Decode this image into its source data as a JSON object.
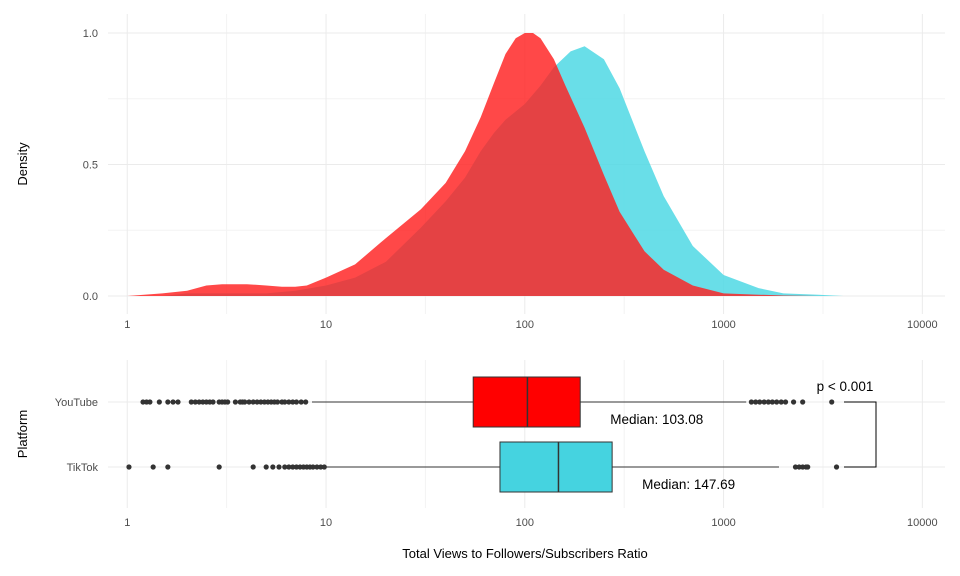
{
  "chart_data": [
    {
      "type": "area",
      "panel": "density",
      "ylabel": "Density",
      "x_scale": "log10",
      "xlim": [
        0.8,
        13000
      ],
      "ylim": [
        0,
        1.05
      ],
      "x_ticks": [
        1,
        10,
        100,
        1000,
        10000
      ],
      "x_tick_labels": [
        "1",
        "10",
        "100",
        "1000",
        "10000"
      ],
      "y_ticks": [
        0,
        0.5,
        1
      ],
      "y_tick_labels": [
        "0.0",
        "0.5",
        "1.0"
      ],
      "grid": true,
      "legend": "none",
      "series": [
        {
          "platform": "TikTok",
          "color": "#4fd8e4",
          "x": [
            1,
            1.5,
            2,
            3,
            4,
            5,
            7,
            10,
            14,
            20,
            30,
            40,
            50,
            60,
            70,
            80,
            100,
            120,
            140,
            170,
            200,
            250,
            300,
            400,
            500,
            700,
            1000,
            1500,
            2000,
            3000,
            4000
          ],
          "y": [
            0,
            0,
            0.01,
            0.01,
            0.01,
            0.01,
            0.02,
            0.04,
            0.07,
            0.13,
            0.26,
            0.36,
            0.45,
            0.55,
            0.62,
            0.67,
            0.73,
            0.8,
            0.87,
            0.93,
            0.95,
            0.9,
            0.79,
            0.55,
            0.38,
            0.19,
            0.08,
            0.03,
            0.01,
            0.005,
            0
          ]
        },
        {
          "platform": "YouTube",
          "color": "#ff2020",
          "x": [
            1,
            1.5,
            2,
            2.5,
            3,
            4,
            5,
            6,
            7,
            8,
            10,
            14,
            20,
            30,
            40,
            50,
            60,
            70,
            80,
            90,
            100,
            110,
            120,
            140,
            160,
            200,
            250,
            300,
            400,
            500,
            700,
            1000,
            1500,
            2000,
            3000
          ],
          "y": [
            0,
            0.01,
            0.02,
            0.04,
            0.045,
            0.045,
            0.04,
            0.035,
            0.035,
            0.04,
            0.07,
            0.12,
            0.22,
            0.33,
            0.43,
            0.55,
            0.68,
            0.81,
            0.92,
            0.98,
            1.0,
            1.0,
            0.98,
            0.9,
            0.8,
            0.64,
            0.46,
            0.32,
            0.17,
            0.1,
            0.04,
            0.01,
            0.005,
            0.002,
            0
          ]
        }
      ]
    },
    {
      "type": "box",
      "panel": "boxplot",
      "xlabel": "Total Views to Followers/Subscribers Ratio",
      "ylabel": "Platform",
      "x_scale": "log10",
      "xlim": [
        0.8,
        13000
      ],
      "x_ticks": [
        1,
        10,
        100,
        1000,
        10000
      ],
      "x_tick_labels": [
        "1",
        "10",
        "100",
        "1000",
        "10000"
      ],
      "categories": [
        "YouTube",
        "TikTok"
      ],
      "grid": true,
      "boxes": [
        {
          "name": "YouTube",
          "color": "#ff0000",
          "whisker_low": 8.5,
          "q1": 55,
          "median": 103.08,
          "q3": 190,
          "whisker_high": 1300,
          "outliers": [
            1.2,
            1.25,
            1.3,
            1.45,
            1.6,
            1.7,
            1.8,
            2.1,
            2.2,
            2.3,
            2.4,
            2.5,
            2.6,
            2.7,
            2.9,
            3.0,
            3.1,
            3.2,
            3.5,
            3.7,
            3.8,
            3.9,
            4.1,
            4.3,
            4.5,
            4.7,
            4.9,
            5.1,
            5.3,
            5.5,
            5.7,
            6.0,
            6.2,
            6.5,
            6.8,
            7.1,
            7.5,
            7.9,
            1380,
            1450,
            1520,
            1600,
            1680,
            1760,
            1850,
            1950,
            2050,
            2250,
            2500,
            3500
          ],
          "median_label": "Median: 103.08"
        },
        {
          "name": "TikTok",
          "color": "#45d3e0",
          "whisker_low": 10,
          "q1": 75,
          "median": 147.69,
          "q3": 275,
          "whisker_high": 1900,
          "outliers": [
            1.02,
            1.35,
            1.6,
            2.9,
            4.3,
            5.0,
            5.4,
            5.8,
            6.2,
            6.5,
            6.8,
            7.1,
            7.4,
            7.7,
            8.0,
            8.3,
            8.6,
            9.0,
            9.4,
            9.8,
            2300,
            2400,
            2500,
            2600,
            2650,
            3700
          ],
          "median_label": "Median: 147.69"
        }
      ],
      "comparison": {
        "label": "p < 0.001"
      }
    }
  ]
}
